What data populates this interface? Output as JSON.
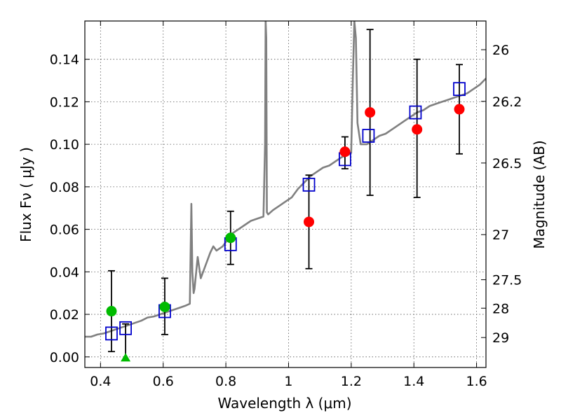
{
  "chart_data": {
    "type": "scatter",
    "xlabel": "Wavelength  λ (μm)",
    "ylabel": "Flux  Fν  ( μJy )",
    "y2label": "Magnitude (AB)",
    "xlim": [
      0.35,
      1.63
    ],
    "ylim": [
      -0.005,
      0.158
    ],
    "grid": true,
    "x_ticks": [
      0.4,
      0.6,
      0.8,
      1.0,
      1.2,
      1.4,
      1.6
    ],
    "x_tick_labels": [
      "0.4",
      "0.6",
      "0.8",
      "1",
      "1.2",
      "1.4",
      "1.6"
    ],
    "y_ticks": [
      0.0,
      0.02,
      0.04,
      0.06,
      0.08,
      0.1,
      0.12,
      0.14
    ],
    "y_tick_labels": [
      "0.00",
      "0.02",
      "0.04",
      "0.06",
      "0.08",
      "0.10",
      "0.12",
      "0.14"
    ],
    "y2_ticks": [
      {
        "label": "26",
        "flux": 0.1445
      },
      {
        "label": "26.2",
        "flux": 0.1202
      },
      {
        "label": "26.5",
        "flux": 0.0912
      },
      {
        "label": "27",
        "flux": 0.0575
      },
      {
        "label": "27.5",
        "flux": 0.0363
      },
      {
        "label": "28",
        "flux": 0.0229
      },
      {
        "label": "29",
        "flux": 0.0091
      }
    ],
    "colors": {
      "template": "#808080",
      "model": "#0000cc",
      "red": "#ff0000",
      "green": "#00bb00",
      "errorbar": "#000000",
      "grid": "#555555"
    },
    "series": [
      {
        "name": "SED template",
        "kind": "line",
        "x": [
          0.35,
          0.37,
          0.39,
          0.41,
          0.43,
          0.45,
          0.47,
          0.49,
          0.51,
          0.53,
          0.55,
          0.57,
          0.59,
          0.61,
          0.63,
          0.65,
          0.67,
          0.685,
          0.69,
          0.693,
          0.697,
          0.7,
          0.71,
          0.72,
          0.73,
          0.74,
          0.75,
          0.76,
          0.77,
          0.78,
          0.79,
          0.8,
          0.81,
          0.82,
          0.84,
          0.86,
          0.88,
          0.9,
          0.92,
          0.925,
          0.927,
          0.929,
          0.931,
          0.935,
          0.95,
          0.97,
          0.99,
          1.01,
          1.03,
          1.05,
          1.07,
          1.09,
          1.11,
          1.13,
          1.15,
          1.17,
          1.19,
          1.2,
          1.205,
          1.21,
          1.215,
          1.22,
          1.23,
          1.25,
          1.27,
          1.29,
          1.31,
          1.33,
          1.35,
          1.37,
          1.39,
          1.41,
          1.43,
          1.45,
          1.47,
          1.49,
          1.51,
          1.53,
          1.55,
          1.57,
          1.59,
          1.61,
          1.63
        ],
        "y": [
          0.0095,
          0.0095,
          0.0105,
          0.011,
          0.012,
          0.013,
          0.014,
          0.015,
          0.016,
          0.017,
          0.0185,
          0.019,
          0.02,
          0.021,
          0.022,
          0.023,
          0.024,
          0.025,
          0.072,
          0.04,
          0.03,
          0.032,
          0.047,
          0.037,
          0.041,
          0.045,
          0.049,
          0.052,
          0.05,
          0.051,
          0.052,
          0.054,
          0.056,
          0.058,
          0.06,
          0.062,
          0.064,
          0.065,
          0.066,
          0.1,
          0.158,
          0.15,
          0.068,
          0.067,
          0.069,
          0.071,
          0.073,
          0.075,
          0.079,
          0.082,
          0.085,
          0.087,
          0.089,
          0.09,
          0.092,
          0.094,
          0.095,
          0.096,
          0.13,
          0.158,
          0.15,
          0.11,
          0.1,
          0.1,
          0.102,
          0.104,
          0.105,
          0.107,
          0.109,
          0.111,
          0.113,
          0.115,
          0.116,
          0.118,
          0.119,
          0.12,
          0.121,
          0.122,
          0.123,
          0.124,
          0.126,
          0.128,
          0.131
        ]
      },
      {
        "name": "Model fluxes",
        "kind": "open-square",
        "x": [
          0.435,
          0.48,
          0.605,
          0.815,
          1.065,
          1.18,
          1.255,
          1.405,
          1.545
        ],
        "y": [
          0.011,
          0.0135,
          0.0215,
          0.053,
          0.081,
          0.093,
          0.104,
          0.115,
          0.126
        ]
      },
      {
        "name": "Observed (red)",
        "kind": "filled-circle",
        "x": [
          1.065,
          1.18,
          1.26,
          1.41,
          1.545
        ],
        "y": [
          0.0635,
          0.0965,
          0.115,
          0.107,
          0.1165
        ],
        "err_low": [
          0.022,
          0.008,
          0.039,
          0.032,
          0.021
        ],
        "err_high": [
          0.022,
          0.007,
          0.039,
          0.033,
          0.021
        ]
      },
      {
        "name": "Observed (green)",
        "kind": "filled-circle",
        "x": [
          0.435,
          0.605,
          0.815
        ],
        "y": [
          0.0215,
          0.0235,
          0.056
        ],
        "err_low": [
          0.019,
          0.013,
          0.0125
        ],
        "err_high": [
          0.019,
          0.0135,
          0.0125
        ]
      },
      {
        "name": "Upper limit",
        "kind": "triangle",
        "x": [
          0.48
        ],
        "y": [
          -0.0005
        ],
        "err_low": [
          0.0
        ],
        "err_high": [
          0.016
        ]
      }
    ]
  }
}
